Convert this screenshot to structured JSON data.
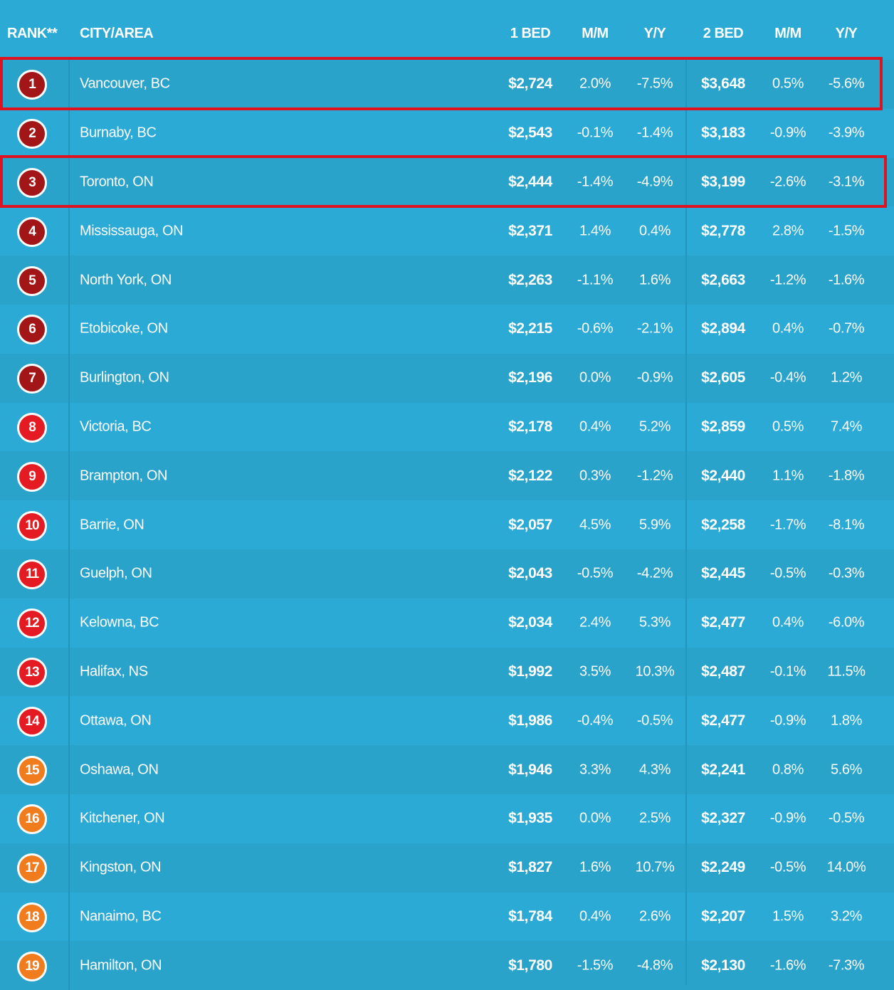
{
  "header": {
    "rank": "RANK**",
    "city": "CITY/AREA",
    "bed1": "1 BED",
    "mm1": "M/M",
    "yy1": "Y/Y",
    "bed2": "2 BED",
    "mm2": "M/M",
    "yy2": "Y/Y"
  },
  "colors": {
    "background": "#2aaad4",
    "highlight": "#e0121f",
    "rank_dark_red": "#a31618",
    "rank_red": "#e41b22",
    "rank_orange": "#f07c1e"
  },
  "highlighted_ranks": [
    "1",
    "3"
  ],
  "rows": [
    {
      "rank": "1",
      "city": "Vancouver, BC",
      "bed1": "$2,724",
      "mm1": "2.0%",
      "yy1": "-7.5%",
      "bed2": "$3,648",
      "mm2": "0.5%",
      "yy2": "-5.6%",
      "tier": "dark"
    },
    {
      "rank": "2",
      "city": "Burnaby, BC",
      "bed1": "$2,543",
      "mm1": "-0.1%",
      "yy1": "-1.4%",
      "bed2": "$3,183",
      "mm2": "-0.9%",
      "yy2": "-3.9%",
      "tier": "dark"
    },
    {
      "rank": "3",
      "city": "Toronto, ON",
      "bed1": "$2,444",
      "mm1": "-1.4%",
      "yy1": "-4.9%",
      "bed2": "$3,199",
      "mm2": "-2.6%",
      "yy2": "-3.1%",
      "tier": "dark"
    },
    {
      "rank": "4",
      "city": "Mississauga, ON",
      "bed1": "$2,371",
      "mm1": "1.4%",
      "yy1": "0.4%",
      "bed2": "$2,778",
      "mm2": "2.8%",
      "yy2": "-1.5%",
      "tier": "dark"
    },
    {
      "rank": "5",
      "city": "North York, ON",
      "bed1": "$2,263",
      "mm1": "-1.1%",
      "yy1": "1.6%",
      "bed2": "$2,663",
      "mm2": "-1.2%",
      "yy2": "-1.6%",
      "tier": "dark"
    },
    {
      "rank": "6",
      "city": "Etobicoke, ON",
      "bed1": "$2,215",
      "mm1": "-0.6%",
      "yy1": "-2.1%",
      "bed2": "$2,894",
      "mm2": "0.4%",
      "yy2": "-0.7%",
      "tier": "dark"
    },
    {
      "rank": "7",
      "city": "Burlington, ON",
      "bed1": "$2,196",
      "mm1": "0.0%",
      "yy1": "-0.9%",
      "bed2": "$2,605",
      "mm2": "-0.4%",
      "yy2": "1.2%",
      "tier": "dark"
    },
    {
      "rank": "8",
      "city": "Victoria, BC",
      "bed1": "$2,178",
      "mm1": "0.4%",
      "yy1": "5.2%",
      "bed2": "$2,859",
      "mm2": "0.5%",
      "yy2": "7.4%",
      "tier": "red"
    },
    {
      "rank": "9",
      "city": "Brampton, ON",
      "bed1": "$2,122",
      "mm1": "0.3%",
      "yy1": "-1.2%",
      "bed2": "$2,440",
      "mm2": "1.1%",
      "yy2": "-1.8%",
      "tier": "red"
    },
    {
      "rank": "10",
      "city": "Barrie, ON",
      "bed1": "$2,057",
      "mm1": "4.5%",
      "yy1": "5.9%",
      "bed2": "$2,258",
      "mm2": "-1.7%",
      "yy2": "-8.1%",
      "tier": "red"
    },
    {
      "rank": "11",
      "city": "Guelph, ON",
      "bed1": "$2,043",
      "mm1": "-0.5%",
      "yy1": "-4.2%",
      "bed2": "$2,445",
      "mm2": "-0.5%",
      "yy2": "-0.3%",
      "tier": "red"
    },
    {
      "rank": "12",
      "city": "Kelowna, BC",
      "bed1": "$2,034",
      "mm1": "2.4%",
      "yy1": "5.3%",
      "bed2": "$2,477",
      "mm2": "0.4%",
      "yy2": "-6.0%",
      "tier": "red"
    },
    {
      "rank": "13",
      "city": "Halifax, NS",
      "bed1": "$1,992",
      "mm1": "3.5%",
      "yy1": "10.3%",
      "bed2": "$2,487",
      "mm2": "-0.1%",
      "yy2": "11.5%",
      "tier": "red"
    },
    {
      "rank": "14",
      "city": "Ottawa, ON",
      "bed1": "$1,986",
      "mm1": "-0.4%",
      "yy1": "-0.5%",
      "bed2": "$2,477",
      "mm2": "-0.9%",
      "yy2": "1.8%",
      "tier": "red"
    },
    {
      "rank": "15",
      "city": "Oshawa, ON",
      "bed1": "$1,946",
      "mm1": "3.3%",
      "yy1": "4.3%",
      "bed2": "$2,241",
      "mm2": "0.8%",
      "yy2": "5.6%",
      "tier": "orange"
    },
    {
      "rank": "16",
      "city": "Kitchener, ON",
      "bed1": "$1,935",
      "mm1": "0.0%",
      "yy1": "2.5%",
      "bed2": "$2,327",
      "mm2": "-0.9%",
      "yy2": "-0.5%",
      "tier": "orange"
    },
    {
      "rank": "17",
      "city": "Kingston, ON",
      "bed1": "$1,827",
      "mm1": "1.6%",
      "yy1": "10.7%",
      "bed2": "$2,249",
      "mm2": "-0.5%",
      "yy2": "14.0%",
      "tier": "orange"
    },
    {
      "rank": "18",
      "city": "Nanaimo, BC",
      "bed1": "$1,784",
      "mm1": "0.4%",
      "yy1": "2.6%",
      "bed2": "$2,207",
      "mm2": "1.5%",
      "yy2": "3.2%",
      "tier": "orange"
    },
    {
      "rank": "19",
      "city": "Hamilton, ON",
      "bed1": "$1,780",
      "mm1": "-1.5%",
      "yy1": "-4.8%",
      "bed2": "$2,130",
      "mm2": "-1.6%",
      "yy2": "-7.3%",
      "tier": "orange"
    }
  ]
}
